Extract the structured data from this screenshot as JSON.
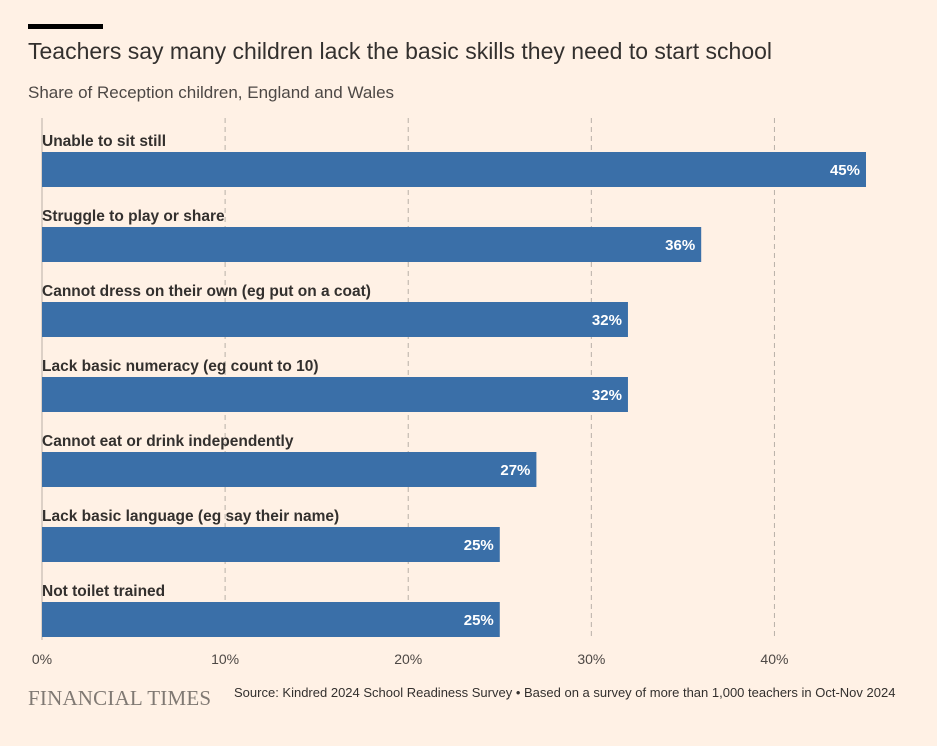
{
  "header": {
    "title": "Teachers say many children lack the basic skills they need to start school",
    "subtitle": "Share of Reception children, England and Wales"
  },
  "footer": {
    "logo_text": "FINANCIAL TIMES",
    "source": "Source: Kindred 2024 School Readiness Survey • Based on a survey of more than 1,000 teachers in Oct-Nov 2024"
  },
  "colors": {
    "background": "#fff1e5",
    "bar": "#3a6fa8",
    "grid": "#b8b0a8"
  },
  "chart_data": {
    "type": "bar",
    "orientation": "horizontal",
    "title": "Teachers say many children lack the basic skills they need to start school",
    "subtitle": "Share of Reception children, England and Wales",
    "categories": [
      "Unable to sit still",
      "Struggle to play or share",
      "Cannot dress on their own (eg put on a coat)",
      "Lack basic numeracy (eg count to 10)",
      "Cannot eat or drink independently",
      "Lack basic language (eg say their name)",
      "Not toilet trained"
    ],
    "values": [
      45,
      36,
      32,
      32,
      27,
      25,
      25
    ],
    "value_labels": [
      "45%",
      "36%",
      "32%",
      "32%",
      "27%",
      "25%",
      "25%"
    ],
    "xlim": [
      0,
      45
    ],
    "xticks": [
      0,
      10,
      20,
      30,
      40
    ],
    "xtick_labels": [
      "0%",
      "10%",
      "20%",
      "30%",
      "40%"
    ],
    "grid": true,
    "xlabel": "",
    "ylabel": ""
  }
}
